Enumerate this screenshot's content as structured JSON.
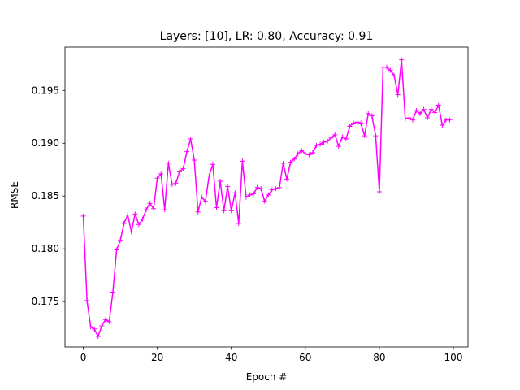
{
  "chart_data": {
    "type": "line",
    "title": "Layers: [10], LR: 0.80, Accuracy: 0.91",
    "xlabel": "Epoch #",
    "ylabel": "RMSE",
    "xlim": [
      -4.95,
      103.95
    ],
    "ylim": [
      0.1707,
      0.1991
    ],
    "xticks": [
      0,
      20,
      40,
      60,
      80,
      100
    ],
    "yticks": [
      0.175,
      0.18,
      0.185,
      0.19,
      0.195
    ],
    "ytick_labels": [
      "0.175",
      "0.180",
      "0.185",
      "0.190",
      "0.195"
    ],
    "grid": false,
    "color": "#ff00ff",
    "marker": "plus",
    "series": [
      {
        "x": [
          0,
          1,
          2,
          3,
          4,
          5,
          6,
          7,
          8,
          9,
          10,
          11,
          12,
          13,
          14,
          15,
          16,
          17,
          18,
          19,
          20,
          21,
          22,
          23,
          24,
          25,
          26,
          27,
          28,
          29,
          30,
          31,
          32,
          33,
          34,
          35,
          36,
          37,
          38,
          39,
          40,
          41,
          42,
          43,
          44,
          45,
          46,
          47,
          48,
          49,
          50,
          51,
          52,
          53,
          54,
          55,
          56,
          57,
          58,
          59,
          60,
          61,
          62,
          63,
          64,
          65,
          66,
          67,
          68,
          69,
          70,
          71,
          72,
          73,
          74,
          75,
          76,
          77,
          78,
          79,
          80,
          81,
          82,
          83,
          84,
          85,
          86,
          87,
          88,
          89,
          90,
          91,
          92,
          93,
          94,
          95,
          96,
          97,
          98,
          99
        ],
        "values": [
          0.1831,
          0.1751,
          0.1726,
          0.1724,
          0.1717,
          0.1727,
          0.1733,
          0.1731,
          0.1759,
          0.1799,
          0.1808,
          0.1824,
          0.1832,
          0.1816,
          0.1833,
          0.1823,
          0.1828,
          0.1837,
          0.1843,
          0.1838,
          0.1867,
          0.1871,
          0.1837,
          0.1881,
          0.1861,
          0.1862,
          0.1873,
          0.1876,
          0.1892,
          0.1904,
          0.1884,
          0.1835,
          0.1849,
          0.1845,
          0.1869,
          0.188,
          0.1839,
          0.1864,
          0.1836,
          0.1859,
          0.1836,
          0.1853,
          0.1824,
          0.1883,
          0.1849,
          0.1851,
          0.1852,
          0.1858,
          0.1857,
          0.1845,
          0.1851,
          0.1856,
          0.1857,
          0.1858,
          0.1881,
          0.1866,
          0.1882,
          0.1885,
          0.189,
          0.1893,
          0.189,
          0.1889,
          0.1891,
          0.1898,
          0.1899,
          0.1901,
          0.1902,
          0.1905,
          0.1908,
          0.1897,
          0.1906,
          0.1904,
          0.1916,
          0.1919,
          0.192,
          0.1919,
          0.1907,
          0.1928,
          0.1926,
          0.1907,
          0.1854,
          0.1972,
          0.1972,
          0.1969,
          0.1964,
          0.1946,
          0.1979,
          0.1923,
          0.1924,
          0.1922,
          0.1931,
          0.1928,
          0.1932,
          0.1924,
          0.1932,
          0.1929,
          0.1936,
          0.1917,
          0.1922,
          0.1922
        ]
      }
    ]
  }
}
